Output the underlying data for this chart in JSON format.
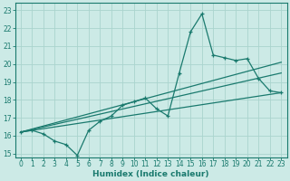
{
  "xlabel": "Humidex (Indice chaleur)",
  "bg_color": "#cceae6",
  "grid_color": "#aad4ce",
  "line_color": "#1a7a6e",
  "xlim": [
    -0.5,
    23.5
  ],
  "ylim": [
    14.8,
    23.4
  ],
  "xticks": [
    0,
    1,
    2,
    3,
    4,
    5,
    6,
    7,
    8,
    9,
    10,
    11,
    12,
    13,
    14,
    15,
    16,
    17,
    18,
    19,
    20,
    21,
    22,
    23
  ],
  "yticks": [
    15,
    16,
    17,
    18,
    19,
    20,
    21,
    22,
    23
  ],
  "main_x": [
    0,
    1,
    2,
    3,
    4,
    5,
    6,
    7,
    8,
    9,
    10,
    11,
    12,
    13,
    14,
    15,
    16,
    17,
    18,
    19,
    20,
    21,
    22,
    23
  ],
  "main_y": [
    16.2,
    16.3,
    16.1,
    15.7,
    15.5,
    14.9,
    16.3,
    16.8,
    17.1,
    17.7,
    17.9,
    18.1,
    17.5,
    17.1,
    19.5,
    21.8,
    22.8,
    20.5,
    20.35,
    20.2,
    20.3,
    19.2,
    18.5,
    18.4
  ],
  "line1_x": [
    0,
    23
  ],
  "line1_y": [
    16.2,
    20.1
  ],
  "line2_x": [
    0,
    23
  ],
  "line2_y": [
    16.2,
    19.5
  ],
  "line3_x": [
    0,
    23
  ],
  "line3_y": [
    16.2,
    18.4
  ]
}
